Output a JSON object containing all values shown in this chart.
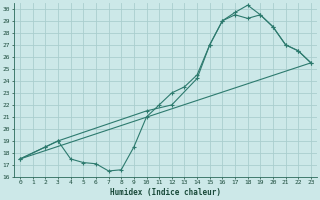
{
  "xlabel": "Humidex (Indice chaleur)",
  "bg_color": "#cce8e8",
  "grid_color": "#aacece",
  "line_color": "#2d7a6e",
  "xlim": [
    -0.5,
    23.5
  ],
  "ylim": [
    16,
    30.5
  ],
  "xticks": [
    0,
    1,
    2,
    3,
    4,
    5,
    6,
    7,
    8,
    9,
    10,
    11,
    12,
    13,
    14,
    15,
    16,
    17,
    18,
    19,
    20,
    21,
    22,
    23
  ],
  "yticks": [
    16,
    17,
    18,
    19,
    20,
    21,
    22,
    23,
    24,
    25,
    26,
    27,
    28,
    29,
    30
  ],
  "curve1_x": [
    0,
    2,
    3,
    4,
    5,
    6,
    7,
    8,
    9,
    10,
    11,
    12,
    13,
    14,
    15,
    16,
    17,
    18,
    19,
    20,
    21,
    22,
    23
  ],
  "curve1_y": [
    17.5,
    18.5,
    19.0,
    17.5,
    17.2,
    17.1,
    16.5,
    16.6,
    18.5,
    21.0,
    22.0,
    23.0,
    23.5,
    24.5,
    27.0,
    29.0,
    29.5,
    29.2,
    29.5,
    28.5,
    27.0,
    26.5,
    25.5
  ],
  "curve2_x": [
    0,
    2,
    3,
    10,
    12,
    14,
    15,
    16,
    17,
    18,
    19,
    20,
    21,
    22,
    23
  ],
  "curve2_y": [
    17.5,
    18.5,
    19.0,
    21.5,
    22.0,
    24.2,
    27.0,
    29.0,
    29.7,
    30.3,
    29.5,
    28.5,
    27.0,
    26.5,
    25.5
  ],
  "line3_x": [
    0,
    23
  ],
  "line3_y": [
    17.5,
    25.5
  ]
}
